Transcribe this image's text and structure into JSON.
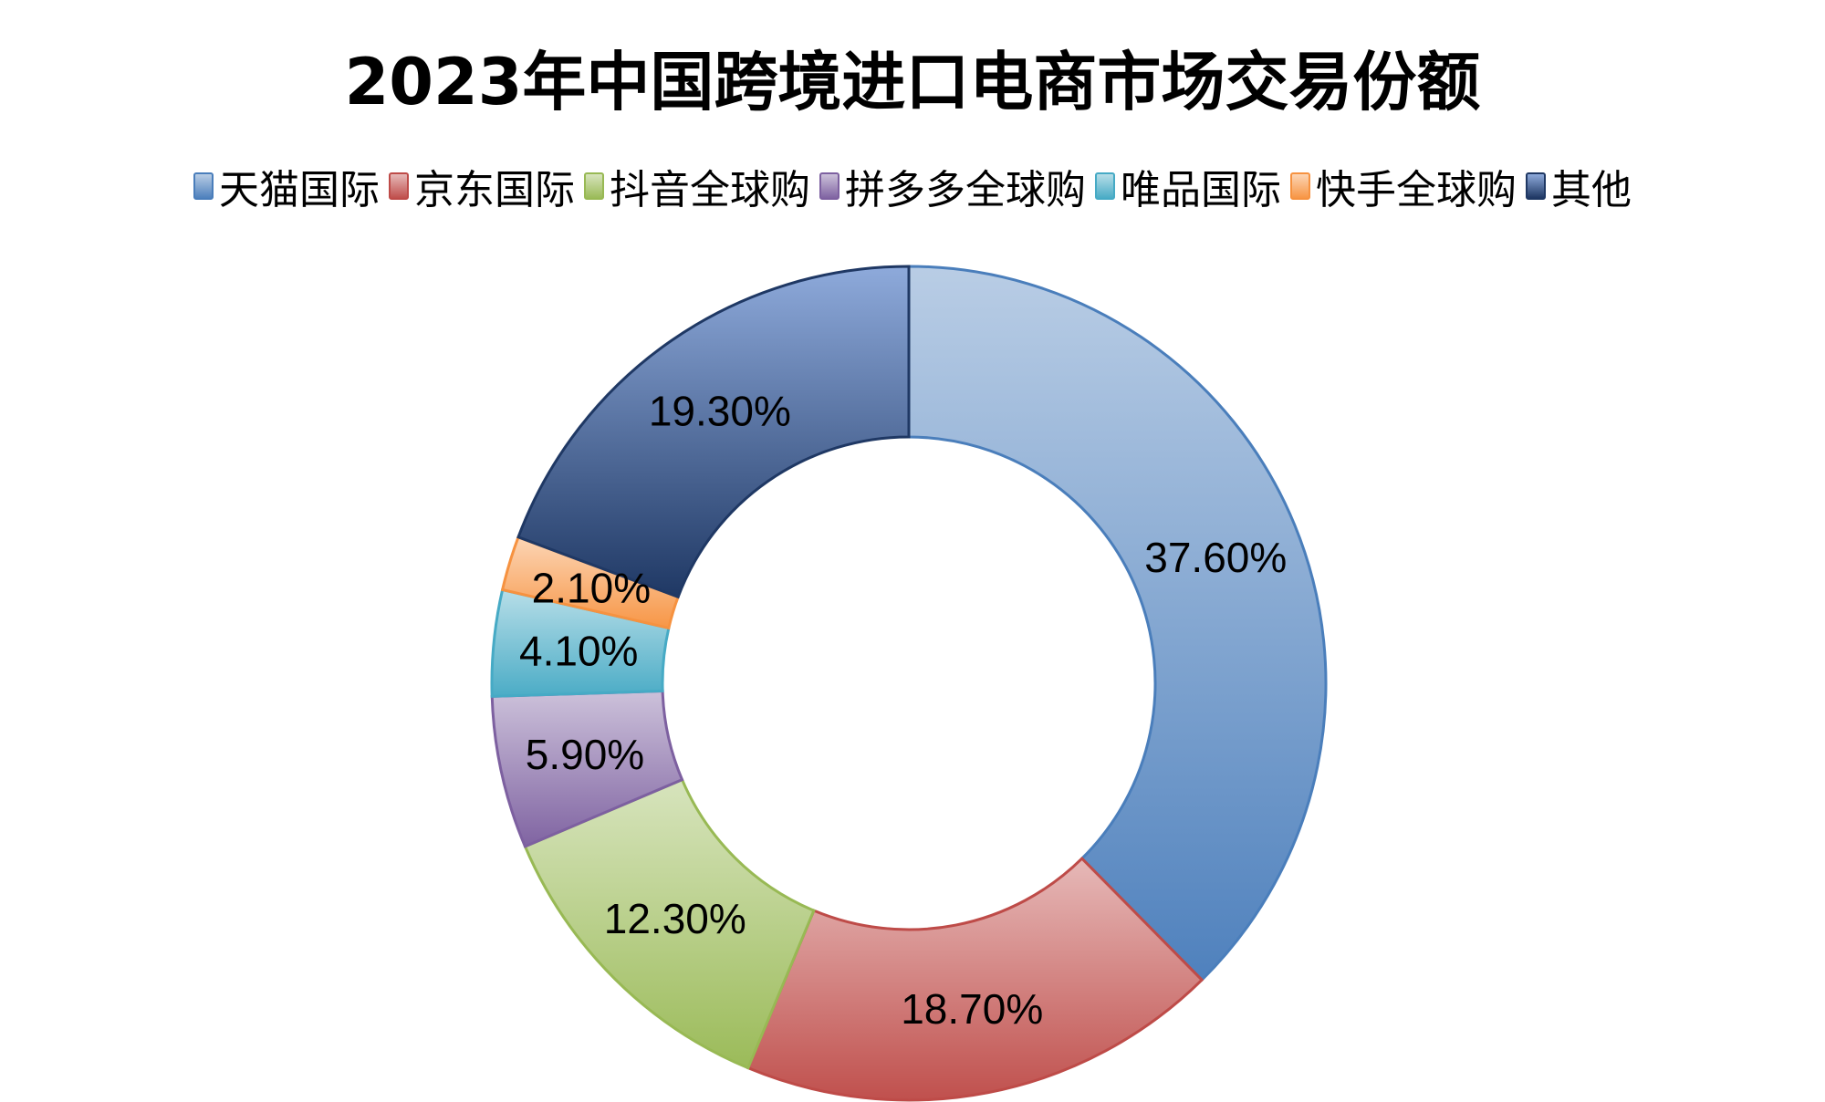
{
  "chart_data": {
    "type": "pie",
    "subtype": "donut",
    "title": "2023年中国跨境进口电商市场交易份额",
    "legend_position": "top",
    "unit": "%",
    "categories": [
      "天猫国际",
      "京东国际",
      "抖音全球购",
      "拼多多全球购",
      "唯品国际",
      "快手全球购",
      "其他"
    ],
    "values": [
      37.6,
      18.7,
      12.3,
      5.9,
      4.1,
      2.1,
      19.3
    ],
    "data_labels": [
      "37.60%",
      "18.70%",
      "12.30%",
      "5.90%",
      "4.10%",
      "2.10%",
      "19.30%"
    ],
    "colors": [
      {
        "light": "#b9cde5",
        "dark": "#4f81bd",
        "stroke": "#4a7ebb"
      },
      {
        "light": "#e6b9b8",
        "dark": "#c0504d",
        "stroke": "#be4b48"
      },
      {
        "light": "#d7e4bd",
        "dark": "#9bbb59",
        "stroke": "#98b954"
      },
      {
        "light": "#ccc1da",
        "dark": "#8064a2",
        "stroke": "#7d60a0"
      },
      {
        "light": "#b7dee8",
        "dark": "#4bacc6",
        "stroke": "#46aac5"
      },
      {
        "light": "#fcd5b5",
        "dark": "#f79646",
        "stroke": "#f69240"
      },
      {
        "light": "#8eaadb",
        "dark": "#1f3864",
        "stroke": "#1f3864"
      }
    ],
    "start_angle": "12 o'clock",
    "direction": "clockwise"
  }
}
